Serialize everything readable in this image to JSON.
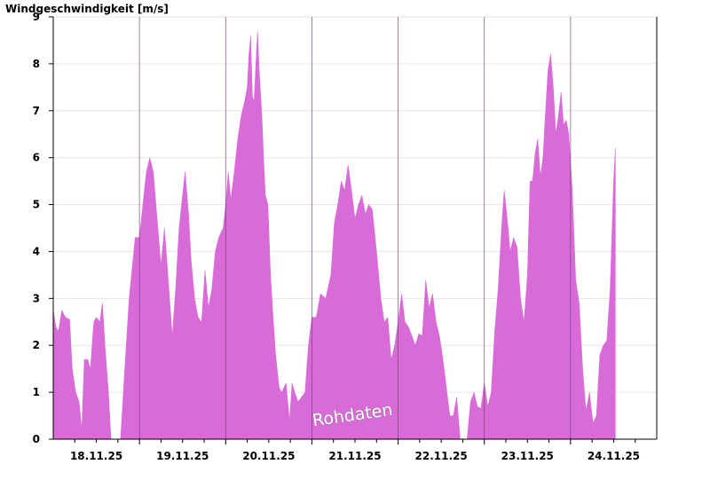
{
  "chart_data": {
    "type": "area",
    "ylabel": "Windgeschwindigkeit [m/s]",
    "ylim": [
      0,
      9
    ],
    "yticks": [
      0,
      1,
      2,
      3,
      4,
      5,
      6,
      7,
      8,
      9
    ],
    "xlim": [
      17.5,
      24.5
    ],
    "xticks": [
      {
        "x": 18.0,
        "label": "18.11.25"
      },
      {
        "x": 19.0,
        "label": "19.11.25"
      },
      {
        "x": 20.0,
        "label": "20.11.25"
      },
      {
        "x": 21.0,
        "label": "21.11.25"
      },
      {
        "x": 22.0,
        "label": "22.11.25"
      },
      {
        "x": 23.0,
        "label": "23.11.25"
      },
      {
        "x": 24.0,
        "label": "24.11.25"
      }
    ],
    "day_boundaries": [
      18.5,
      19.5,
      20.5,
      21.5,
      22.5,
      23.5
    ],
    "grid": "horizontal",
    "fill_color": "#d96bd8",
    "watermark": "Rohdaten",
    "series": [
      {
        "points": [
          [
            17.5,
            2.75
          ],
          [
            17.53,
            2.4
          ],
          [
            17.56,
            2.3
          ],
          [
            17.6,
            2.75
          ],
          [
            17.64,
            2.6
          ],
          [
            17.69,
            2.55
          ],
          [
            17.72,
            1.5
          ],
          [
            17.76,
            1.0
          ],
          [
            17.8,
            0.8
          ],
          [
            17.83,
            0.2
          ],
          [
            17.86,
            1.7
          ],
          [
            17.9,
            1.7
          ],
          [
            17.93,
            1.5
          ],
          [
            17.97,
            2.5
          ],
          [
            18.0,
            2.6
          ],
          [
            18.04,
            2.5
          ],
          [
            18.07,
            2.9
          ],
          [
            18.1,
            2.0
          ],
          [
            18.14,
            1.0
          ],
          [
            18.17,
            0.0
          ],
          [
            18.28,
            0.0
          ],
          [
            18.33,
            1.5
          ],
          [
            18.38,
            3.0
          ],
          [
            18.45,
            4.3
          ],
          [
            18.5,
            4.3
          ],
          [
            18.54,
            5.0
          ],
          [
            18.58,
            5.7
          ],
          [
            18.62,
            6.0
          ],
          [
            18.66,
            5.7
          ],
          [
            18.7,
            4.8
          ],
          [
            18.75,
            3.7
          ],
          [
            18.79,
            4.5
          ],
          [
            18.83,
            3.5
          ],
          [
            18.88,
            2.2
          ],
          [
            18.92,
            3.2
          ],
          [
            18.96,
            4.5
          ],
          [
            19.0,
            5.2
          ],
          [
            19.03,
            5.7
          ],
          [
            19.07,
            4.8
          ],
          [
            19.1,
            3.8
          ],
          [
            19.14,
            3.0
          ],
          [
            19.18,
            2.6
          ],
          [
            19.22,
            2.5
          ],
          [
            19.26,
            3.6
          ],
          [
            19.3,
            2.8
          ],
          [
            19.34,
            3.2
          ],
          [
            19.38,
            4.0
          ],
          [
            19.42,
            4.3
          ],
          [
            19.47,
            4.5
          ],
          [
            19.5,
            5.0
          ],
          [
            19.53,
            5.7
          ],
          [
            19.56,
            5.1
          ],
          [
            19.6,
            5.7
          ],
          [
            19.64,
            6.4
          ],
          [
            19.68,
            6.9
          ],
          [
            19.72,
            7.2
          ],
          [
            19.75,
            7.5
          ],
          [
            19.77,
            8.2
          ],
          [
            19.79,
            8.6
          ],
          [
            19.81,
            7.3
          ],
          [
            19.83,
            7.2
          ],
          [
            19.85,
            8.0
          ],
          [
            19.87,
            8.7
          ],
          [
            19.89,
            7.8
          ],
          [
            19.92,
            6.9
          ],
          [
            19.94,
            6.0
          ],
          [
            19.96,
            5.2
          ],
          [
            19.99,
            5.0
          ],
          [
            20.02,
            3.5
          ],
          [
            20.05,
            2.6
          ],
          [
            20.08,
            1.8
          ],
          [
            20.12,
            1.1
          ],
          [
            20.15,
            1.0
          ],
          [
            20.2,
            1.2
          ],
          [
            20.24,
            0.4
          ],
          [
            20.27,
            1.2
          ],
          [
            20.3,
            1.0
          ],
          [
            20.34,
            0.8
          ],
          [
            20.38,
            0.9
          ],
          [
            20.42,
            1.0
          ],
          [
            20.46,
            2.0
          ],
          [
            20.5,
            2.6
          ],
          [
            20.55,
            2.6
          ],
          [
            20.6,
            3.1
          ],
          [
            20.66,
            3.0
          ],
          [
            20.72,
            3.5
          ],
          [
            20.76,
            4.6
          ],
          [
            20.8,
            5.0
          ],
          [
            20.84,
            5.5
          ],
          [
            20.88,
            5.3
          ],
          [
            20.92,
            5.85
          ],
          [
            20.96,
            5.3
          ],
          [
            21.0,
            4.7
          ],
          [
            21.04,
            5.0
          ],
          [
            21.08,
            5.2
          ],
          [
            21.12,
            4.8
          ],
          [
            21.16,
            5.0
          ],
          [
            21.2,
            4.9
          ],
          [
            21.25,
            4.0
          ],
          [
            21.3,
            3.0
          ],
          [
            21.34,
            2.5
          ],
          [
            21.38,
            2.6
          ],
          [
            21.42,
            1.7
          ],
          [
            21.46,
            2.0
          ],
          [
            21.5,
            2.5
          ],
          [
            21.54,
            3.1
          ],
          [
            21.58,
            2.5
          ],
          [
            21.62,
            2.4
          ],
          [
            21.66,
            2.2
          ],
          [
            21.7,
            2.0
          ],
          [
            21.74,
            2.25
          ],
          [
            21.78,
            2.2
          ],
          [
            21.82,
            3.4
          ],
          [
            21.86,
            2.8
          ],
          [
            21.9,
            3.1
          ],
          [
            21.94,
            2.5
          ],
          [
            21.98,
            2.2
          ],
          [
            22.02,
            1.7
          ],
          [
            22.06,
            1.1
          ],
          [
            22.1,
            0.5
          ],
          [
            22.14,
            0.5
          ],
          [
            22.18,
            0.9
          ],
          [
            22.22,
            0.0
          ],
          [
            22.3,
            0.0
          ],
          [
            22.34,
            0.8
          ],
          [
            22.38,
            1.0
          ],
          [
            22.42,
            0.7
          ],
          [
            22.46,
            0.65
          ],
          [
            22.5,
            1.2
          ],
          [
            22.54,
            0.7
          ],
          [
            22.58,
            1.0
          ],
          [
            22.62,
            2.3
          ],
          [
            22.66,
            3.2
          ],
          [
            22.7,
            4.5
          ],
          [
            22.73,
            5.3
          ],
          [
            22.76,
            4.8
          ],
          [
            22.8,
            4.0
          ],
          [
            22.84,
            4.3
          ],
          [
            22.88,
            4.1
          ],
          [
            22.92,
            3.0
          ],
          [
            22.96,
            2.5
          ],
          [
            23.0,
            3.5
          ],
          [
            23.03,
            5.5
          ],
          [
            23.06,
            5.5
          ],
          [
            23.09,
            6.1
          ],
          [
            23.12,
            6.4
          ],
          [
            23.15,
            5.6
          ],
          [
            23.18,
            6.0
          ],
          [
            23.21,
            7.0
          ],
          [
            23.24,
            7.9
          ],
          [
            23.27,
            8.2
          ],
          [
            23.3,
            7.5
          ],
          [
            23.33,
            6.5
          ],
          [
            23.36,
            6.9
          ],
          [
            23.39,
            7.4
          ],
          [
            23.42,
            6.7
          ],
          [
            23.45,
            6.8
          ],
          [
            23.48,
            6.5
          ],
          [
            23.52,
            5.3
          ],
          [
            23.56,
            3.4
          ],
          [
            23.6,
            2.9
          ],
          [
            23.64,
            1.5
          ],
          [
            23.68,
            0.6
          ],
          [
            23.72,
            1.0
          ],
          [
            23.76,
            0.35
          ],
          [
            23.8,
            0.5
          ],
          [
            23.84,
            1.8
          ],
          [
            23.88,
            2.0
          ],
          [
            23.92,
            2.1
          ],
          [
            23.96,
            3.2
          ],
          [
            24.0,
            5.5
          ],
          [
            24.02,
            6.2
          ],
          [
            24.02,
            0.0
          ]
        ]
      }
    ]
  }
}
